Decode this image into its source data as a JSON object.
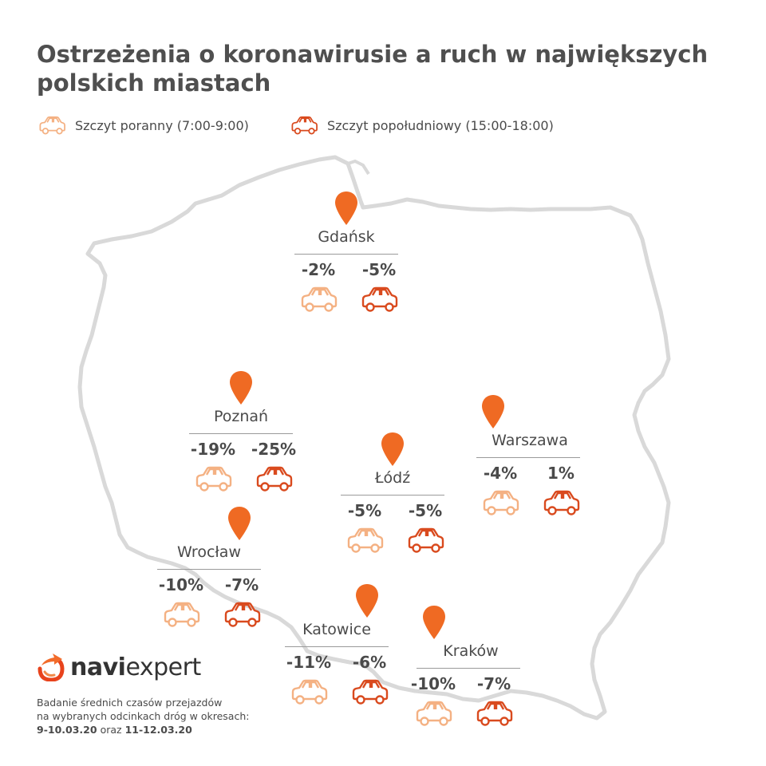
{
  "title": "Ostrzeżenia o koronawirusie a ruch w największych polskich miastach",
  "legend": {
    "morning_label": "Szczyt poranny (7:00-9:00)",
    "evening_label": "Szczyt popołudniowy (15:00-18:00)",
    "morning_icon": "car-outline-icon",
    "evening_icon": "car-outline-icon"
  },
  "colors": {
    "morning": "#f4b183",
    "evening": "#d94a1e",
    "pin": "#ef6a23",
    "border": "#d9d9d9",
    "text": "#4a4a4a"
  },
  "cities": [
    {
      "name": "Gdańsk",
      "morning": "-2%",
      "evening": "-5%"
    },
    {
      "name": "Poznań",
      "morning": "-19%",
      "evening": "-25%"
    },
    {
      "name": "Warszawa",
      "morning": "-4%",
      "evening": "1%"
    },
    {
      "name": "Łódź",
      "morning": "-5%",
      "evening": "-5%"
    },
    {
      "name": "Wrocław",
      "morning": "-10%",
      "evening": "-7%"
    },
    {
      "name": "Katowice",
      "morning": "-11%",
      "evening": "-6%"
    },
    {
      "name": "Kraków",
      "morning": "-10%",
      "evening": "-7%"
    }
  ],
  "logo": {
    "part1": "navi",
    "part2": "expert",
    "icon": "naviexpert-logo-icon"
  },
  "footnote": {
    "line1": "Badanie średnich czasów przejazdów",
    "line2": "na wybranych odcinkach dróg w okresach:",
    "dates1": "9-10.03.20",
    "conj": "oraz",
    "dates2": "11-12.03.20"
  }
}
